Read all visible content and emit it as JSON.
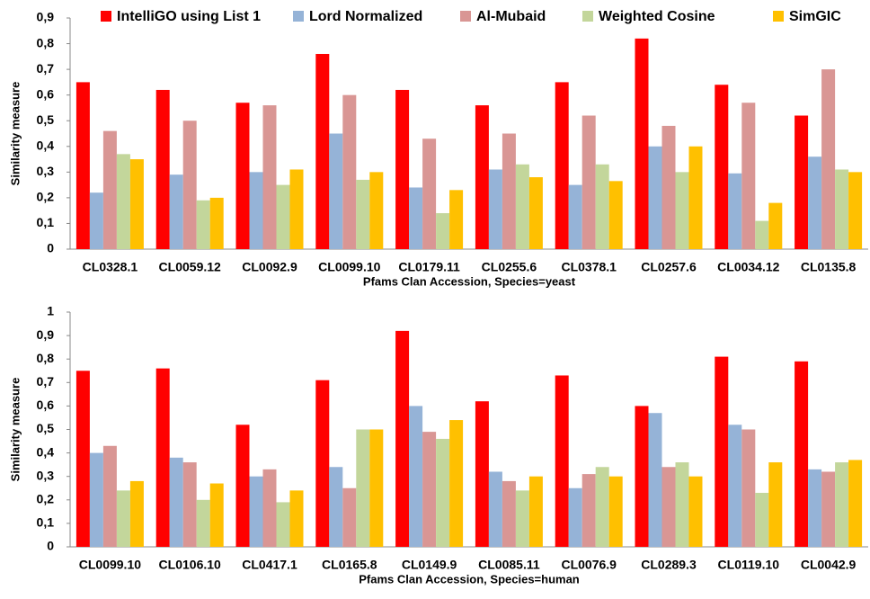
{
  "chart_data": [
    {
      "type": "bar",
      "categories": [
        "CL0328.1",
        "CL0059.12",
        "CL0092.9",
        "CL0099.10",
        "CL0179.11",
        "CL0255.6",
        "CL0378.1",
        "CL0257.6",
        "CL0034.12",
        "CL0135.8"
      ],
      "series": [
        {
          "name": "IntelliGO using  List 1",
          "color": "#ff0000",
          "values": [
            0.65,
            0.62,
            0.57,
            0.76,
            0.62,
            0.56,
            0.65,
            0.82,
            0.64,
            0.52
          ]
        },
        {
          "name": "Lord Normalized",
          "color": "#95b3d7",
          "values": [
            0.22,
            0.29,
            0.3,
            0.45,
            0.24,
            0.31,
            0.25,
            0.4,
            0.295,
            0.36
          ]
        },
        {
          "name": "Al-Mubaid",
          "color": "#d99694",
          "values": [
            0.46,
            0.5,
            0.56,
            0.6,
            0.43,
            0.45,
            0.52,
            0.48,
            0.57,
            0.7
          ]
        },
        {
          "name": "Weighted Cosine",
          "color": "#c3d69b",
          "values": [
            0.37,
            0.19,
            0.25,
            0.27,
            0.14,
            0.33,
            0.33,
            0.3,
            0.11,
            0.31
          ]
        },
        {
          "name": "SimGIC",
          "color": "#ffc000",
          "values": [
            0.35,
            0.2,
            0.31,
            0.3,
            0.23,
            0.28,
            0.265,
            0.4,
            0.18,
            0.3
          ]
        }
      ],
      "x_label": "Pfams Clan Accession, Species=yeast",
      "y_label": "Similarity measure",
      "ylim": [
        0,
        0.9
      ],
      "yticks": [
        0,
        {
          "value": 0.1,
          "label": "0,1"
        },
        {
          "value": 0.2,
          "label": "0,2"
        },
        {
          "value": 0.3,
          "label": "0,3"
        },
        {
          "value": 0.4,
          "label": "0,4"
        },
        {
          "value": 0.5,
          "label": "0,5"
        },
        {
          "value": 0.6,
          "label": "0,6"
        },
        {
          "value": 0.7,
          "label": "0,7"
        },
        {
          "value": 0.8,
          "label": "0,8"
        },
        {
          "value": 0.9,
          "label": "0,9"
        }
      ],
      "legend": "top"
    },
    {
      "type": "bar",
      "categories": [
        "CL0099.10",
        "CL0106.10",
        "CL0417.1",
        "CL0165.8",
        "CL0149.9",
        "CL0085.11",
        "CL0076.9",
        "CL0289.3",
        "CL0119.10",
        "CL0042.9"
      ],
      "series": [
        {
          "color": "#ff0000",
          "values": [
            0.75,
            0.76,
            0.52,
            0.71,
            0.92,
            0.62,
            0.73,
            0.6,
            0.81,
            0.79
          ]
        },
        {
          "color": "#95b3d7",
          "values": [
            0.4,
            0.38,
            0.3,
            0.34,
            0.6,
            0.32,
            0.25,
            0.57,
            0.52,
            0.33
          ]
        },
        {
          "color": "#d99694",
          "values": [
            0.43,
            0.36,
            0.33,
            0.25,
            0.49,
            0.28,
            0.31,
            0.34,
            0.5,
            0.32
          ]
        },
        {
          "color": "#c3d69b",
          "values": [
            0.24,
            0.2,
            0.19,
            0.5,
            0.46,
            0.24,
            0.34,
            0.36,
            0.23,
            0.36
          ]
        },
        {
          "color": "#ffc000",
          "values": [
            0.28,
            0.27,
            0.24,
            0.5,
            0.54,
            0.3,
            0.3,
            0.3,
            0.36,
            0.37
          ]
        }
      ],
      "x_label": "Pfams Clan Accession, Species=human",
      "y_label": "Similarity measure",
      "ylim": [
        0,
        1
      ],
      "yticks": [
        0,
        {
          "value": 0.1,
          "label": "0,1"
        },
        {
          "value": 0.2,
          "label": "0,2"
        },
        {
          "value": 0.3,
          "label": "0,3"
        },
        {
          "value": 0.4,
          "label": "0,4"
        },
        {
          "value": 0.5,
          "label": "0,5"
        },
        {
          "value": 0.6,
          "label": "0,6"
        },
        {
          "value": 0.7,
          "label": "0,7"
        },
        {
          "value": 0.8,
          "label": "0,8"
        },
        {
          "value": 0.9,
          "label": "0,9"
        },
        1
      ]
    }
  ]
}
